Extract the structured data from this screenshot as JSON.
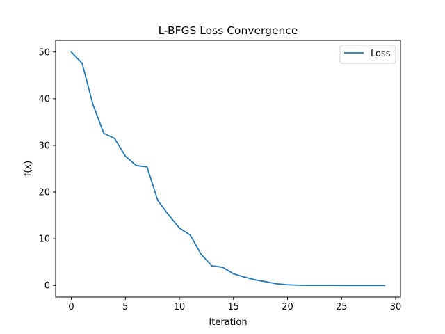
{
  "chart_data": {
    "type": "line",
    "title": "L-BFGS Loss Convergence",
    "xlabel": "Iteration",
    "ylabel": "f(x)",
    "xlim": [
      -1.45,
      30.45
    ],
    "ylim": [
      -2.5,
      52.5
    ],
    "xticks": [
      0,
      5,
      10,
      15,
      20,
      25,
      30
    ],
    "yticks": [
      0,
      10,
      20,
      30,
      40,
      50
    ],
    "grid": false,
    "legend_position": "upper right",
    "series": [
      {
        "name": "Loss",
        "color": "#1f77b4",
        "x": [
          0,
          1,
          2,
          3,
          4,
          5,
          6,
          7,
          8,
          9,
          10,
          11,
          12,
          13,
          14,
          15,
          16,
          17,
          18,
          19,
          20,
          21,
          22,
          23,
          24,
          25,
          26,
          27,
          28,
          29
        ],
        "values": [
          50.0,
          47.6,
          38.8,
          32.6,
          31.5,
          27.7,
          25.7,
          25.4,
          18.2,
          15.1,
          12.3,
          10.8,
          6.7,
          4.2,
          3.9,
          2.5,
          1.8,
          1.2,
          0.8,
          0.35,
          0.15,
          0.05,
          0.02,
          0.01,
          0.01,
          0.0,
          0.0,
          0.0,
          0.0,
          0.0
        ]
      }
    ]
  }
}
